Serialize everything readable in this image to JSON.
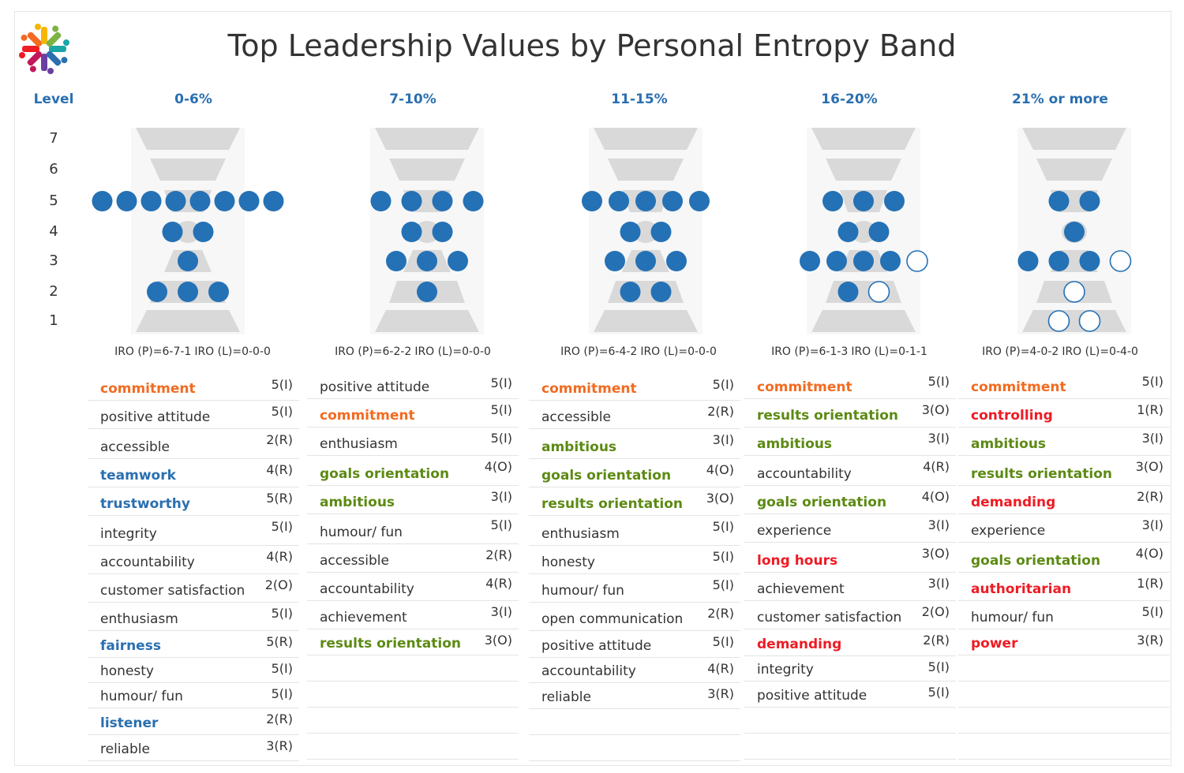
{
  "title": "Top Leadership Values by Personal Entropy Band",
  "level_label": "Level",
  "levels": [
    "7",
    "6",
    "5",
    "4",
    "3",
    "2",
    "1"
  ],
  "colors": {
    "dot": "#2471b5",
    "shape": "#d9d9d9",
    "black": "#333333",
    "orange": "#f26b21",
    "green": "#5c8a13",
    "blue": "#2a6fb0",
    "red": "#ee1b24"
  },
  "chart_data": {
    "type": "dot-matrix",
    "title": "Top Leadership Values by Personal Entropy Band",
    "y_axis": "Level",
    "bands": [
      {
        "name": "0-6%",
        "iro_p": "IRO (P)=6-7-1",
        "iro_l": "IRO (L)=0-0-0",
        "dots": {
          "5": {
            "filled": 8,
            "hollow": 0
          },
          "4": {
            "filled": 2,
            "hollow": 0
          },
          "3": {
            "filled": 1,
            "hollow": 0
          },
          "2": {
            "filled": 3,
            "hollow": 0
          }
        },
        "values": [
          {
            "name": "commitment",
            "code": "5(I)",
            "color": "orange"
          },
          {
            "name": "positive attitude",
            "code": "5(I)",
            "color": "black"
          },
          {
            "name": "accessible",
            "code": "2(R)",
            "color": "black"
          },
          {
            "name": "teamwork",
            "code": "4(R)",
            "color": "blue"
          },
          {
            "name": "trustworthy",
            "code": "5(R)",
            "color": "blue"
          },
          {
            "name": "integrity",
            "code": "5(I)",
            "color": "black"
          },
          {
            "name": "accountability",
            "code": "4(R)",
            "color": "black"
          },
          {
            "name": "customer satisfaction",
            "code": "2(O)",
            "color": "black"
          },
          {
            "name": "enthusiasm",
            "code": "5(I)",
            "color": "black"
          },
          {
            "name": "fairness",
            "code": "5(R)",
            "color": "blue"
          },
          {
            "name": "honesty",
            "code": "5(I)",
            "color": "black"
          },
          {
            "name": "humour/ fun",
            "code": "5(I)",
            "color": "black"
          },
          {
            "name": "listener",
            "code": "2(R)",
            "color": "blue"
          },
          {
            "name": "reliable",
            "code": "3(R)",
            "color": "black"
          }
        ]
      },
      {
        "name": "7-10%",
        "iro_p": "IRO (P)=6-2-2",
        "iro_l": "IRO (L)=0-0-0",
        "dots": {
          "5": {
            "filled": 4,
            "hollow": 0
          },
          "4": {
            "filled": 2,
            "hollow": 0
          },
          "3": {
            "filled": 3,
            "hollow": 0
          },
          "2": {
            "filled": 1,
            "hollow": 0
          }
        },
        "values": [
          {
            "name": "positive attitude",
            "code": "5(I)",
            "color": "black"
          },
          {
            "name": "commitment",
            "code": "5(I)",
            "color": "orange"
          },
          {
            "name": "enthusiasm",
            "code": "5(I)",
            "color": "black"
          },
          {
            "name": "goals orientation",
            "code": "4(O)",
            "color": "green"
          },
          {
            "name": "ambitious",
            "code": "3(I)",
            "color": "green"
          },
          {
            "name": "humour/ fun",
            "code": "5(I)",
            "color": "black"
          },
          {
            "name": "accessible",
            "code": "2(R)",
            "color": "black"
          },
          {
            "name": "accountability",
            "code": "4(R)",
            "color": "black"
          },
          {
            "name": "achievement",
            "code": "3(I)",
            "color": "black"
          },
          {
            "name": "results orientation",
            "code": "3(O)",
            "color": "green"
          }
        ]
      },
      {
        "name": "11-15%",
        "iro_p": "IRO (P)=6-4-2",
        "iro_l": "IRO (L)=0-0-0",
        "dots": {
          "5": {
            "filled": 5,
            "hollow": 0
          },
          "4": {
            "filled": 2,
            "hollow": 0
          },
          "3": {
            "filled": 3,
            "hollow": 0
          },
          "2": {
            "filled": 2,
            "hollow": 0
          }
        },
        "values": [
          {
            "name": "commitment",
            "code": "5(I)",
            "color": "orange"
          },
          {
            "name": "accessible",
            "code": "2(R)",
            "color": "black"
          },
          {
            "name": "ambitious",
            "code": "3(I)",
            "color": "green"
          },
          {
            "name": "goals orientation",
            "code": "4(O)",
            "color": "green"
          },
          {
            "name": "results orientation",
            "code": "3(O)",
            "color": "green"
          },
          {
            "name": "enthusiasm",
            "code": "5(I)",
            "color": "black"
          },
          {
            "name": "honesty",
            "code": "5(I)",
            "color": "black"
          },
          {
            "name": "humour/ fun",
            "code": "5(I)",
            "color": "black"
          },
          {
            "name": "open communication",
            "code": "2(R)",
            "color": "black"
          },
          {
            "name": "positive attitude",
            "code": "5(I)",
            "color": "black"
          },
          {
            "name": "accountability",
            "code": "4(R)",
            "color": "black"
          },
          {
            "name": "reliable",
            "code": "3(R)",
            "color": "black"
          }
        ]
      },
      {
        "name": "16-20%",
        "iro_p": "IRO (P)=6-1-3",
        "iro_l": "IRO (L)=0-1-1",
        "dots": {
          "5": {
            "filled": 3,
            "hollow": 0
          },
          "4": {
            "filled": 2,
            "hollow": 0
          },
          "3": {
            "filled": 4,
            "hollow": 1
          },
          "2": {
            "filled": 1,
            "hollow": 1
          }
        },
        "values": [
          {
            "name": "commitment",
            "code": "5(I)",
            "color": "orange"
          },
          {
            "name": "results orientation",
            "code": "3(O)",
            "color": "green"
          },
          {
            "name": "ambitious",
            "code": "3(I)",
            "color": "green"
          },
          {
            "name": "accountability",
            "code": "4(R)",
            "color": "black"
          },
          {
            "name": "goals orientation",
            "code": "4(O)",
            "color": "green"
          },
          {
            "name": "experience",
            "code": "3(I)",
            "color": "black"
          },
          {
            "name": "long hours",
            "code": "3(O)",
            "color": "red"
          },
          {
            "name": "achievement",
            "code": "3(I)",
            "color": "black"
          },
          {
            "name": "customer satisfaction",
            "code": "2(O)",
            "color": "black"
          },
          {
            "name": "demanding",
            "code": "2(R)",
            "color": "red"
          },
          {
            "name": "integrity",
            "code": "5(I)",
            "color": "black"
          },
          {
            "name": "positive attitude",
            "code": "5(I)",
            "color": "black"
          }
        ]
      },
      {
        "name": "21% or more",
        "iro_p": "IRO (P)=4-0-2",
        "iro_l": "IRO (L)=0-4-0",
        "dots": {
          "5": {
            "filled": 2,
            "hollow": 0
          },
          "4": {
            "filled": 1,
            "hollow": 0
          },
          "3": {
            "filled": 3,
            "hollow": 1
          },
          "2": {
            "filled": 0,
            "hollow": 1
          },
          "1": {
            "filled": 0,
            "hollow": 2
          }
        },
        "values": [
          {
            "name": "commitment",
            "code": "5(I)",
            "color": "orange"
          },
          {
            "name": "controlling",
            "code": "1(R)",
            "color": "red"
          },
          {
            "name": "ambitious",
            "code": "3(I)",
            "color": "green"
          },
          {
            "name": "results orientation",
            "code": "3(O)",
            "color": "green"
          },
          {
            "name": "demanding",
            "code": "2(R)",
            "color": "red"
          },
          {
            "name": "experience",
            "code": "3(I)",
            "color": "black"
          },
          {
            "name": "goals orientation",
            "code": "4(O)",
            "color": "green"
          },
          {
            "name": "authoritarian",
            "code": "1(R)",
            "color": "red"
          },
          {
            "name": "humour/ fun",
            "code": "5(I)",
            "color": "black"
          },
          {
            "name": "power",
            "code": "3(R)",
            "color": "red"
          }
        ]
      }
    ]
  }
}
